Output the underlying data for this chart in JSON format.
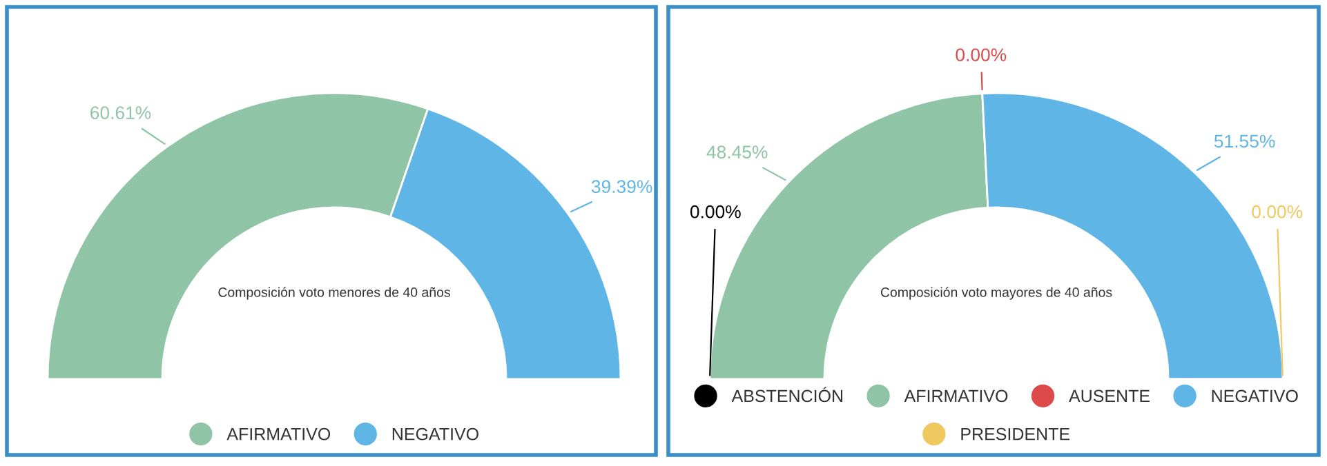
{
  "chart_data": [
    {
      "type": "donut",
      "title": "Composición voto menores de 40 años",
      "categories": [
        "AFIRMATIVO",
        "NEGATIVO"
      ],
      "values": [
        60.61,
        39.39
      ],
      "colors": [
        "#8fc4a6",
        "#5fb5e5"
      ],
      "value_labels": [
        "60.61%",
        "39.39%"
      ],
      "legend": "bottom"
    },
    {
      "type": "donut",
      "title": "Composición voto mayores de 40 años",
      "categories": [
        "ABSTENCIÓN",
        "AFIRMATIVO",
        "AUSENTE",
        "NEGATIVO",
        "PRESIDENTE"
      ],
      "values": [
        0,
        48.45,
        0,
        51.55,
        0
      ],
      "colors": [
        "#000000",
        "#8fc4a6",
        "#dc4a4a",
        "#5fb5e5",
        "#f0c860"
      ],
      "value_labels": [
        "0.00%",
        "48.45%",
        "0.00%",
        "51.55%",
        "0.00%"
      ],
      "legend": "bottom"
    }
  ]
}
